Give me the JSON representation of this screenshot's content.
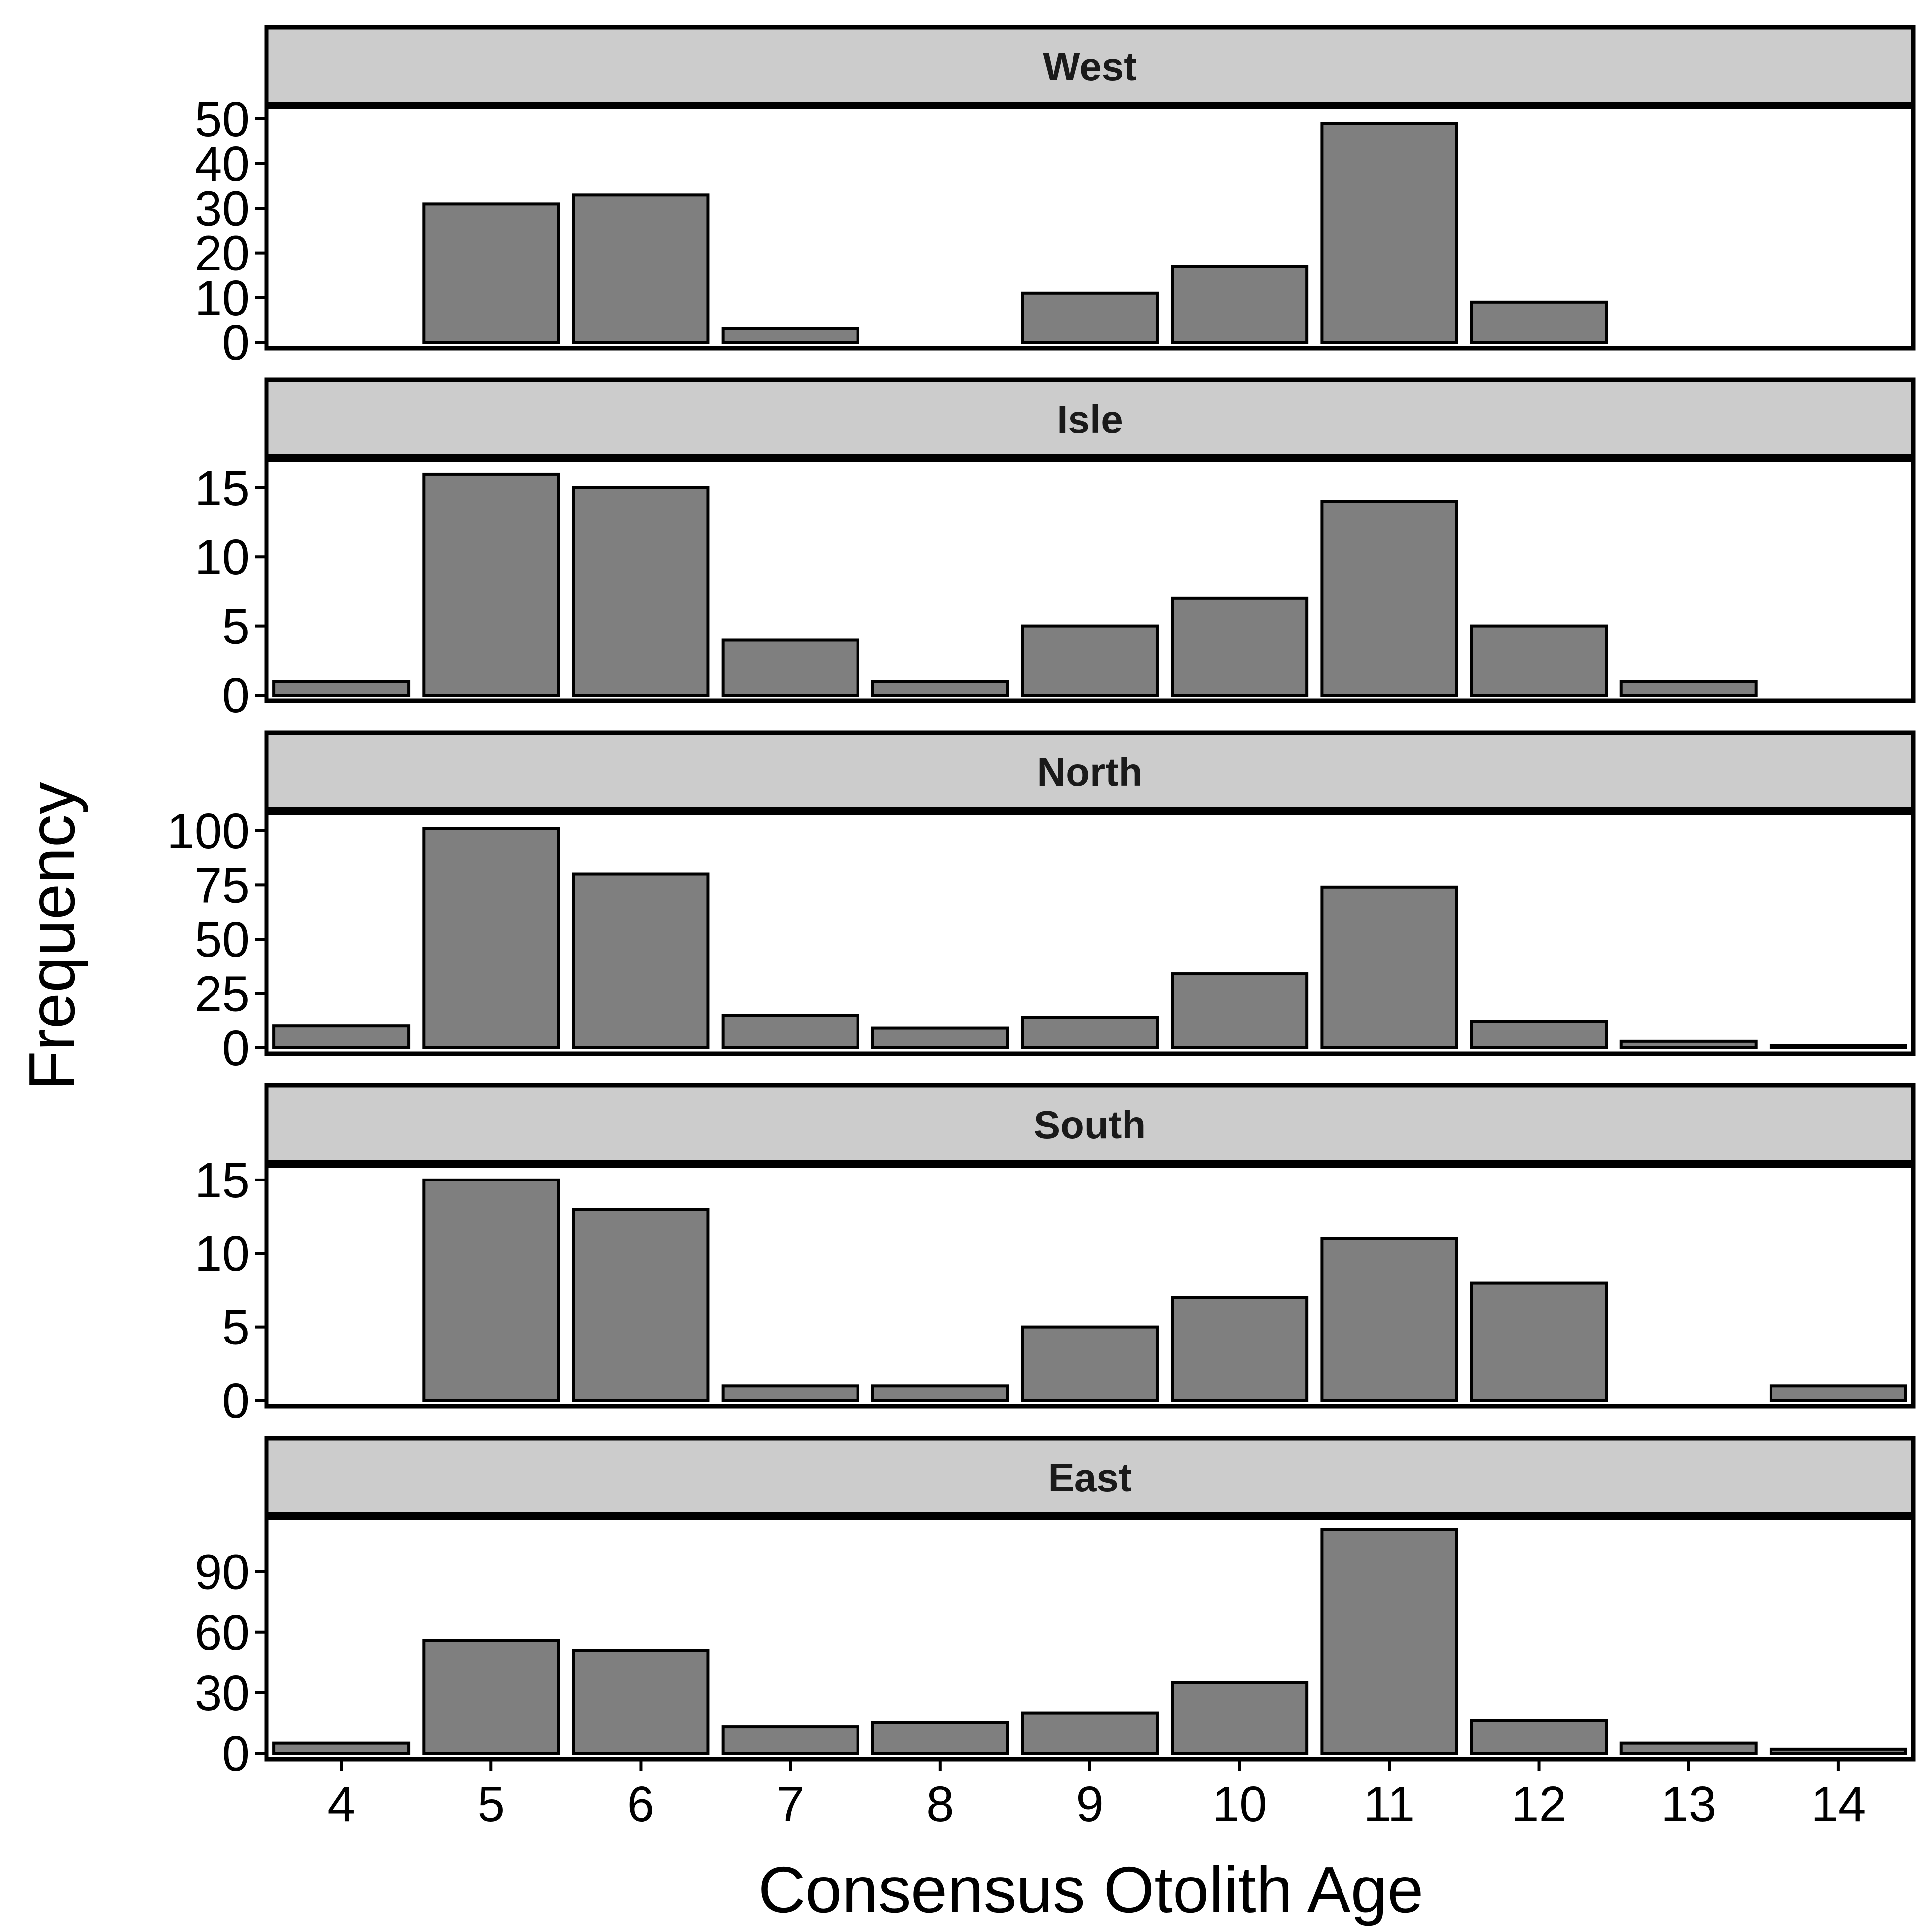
{
  "chart_data": {
    "type": "bar",
    "xlabel": "Consensus Otolith Age",
    "ylabel": "Frequency",
    "categories": [
      "4",
      "5",
      "6",
      "7",
      "8",
      "9",
      "10",
      "11",
      "12",
      "13",
      "14"
    ],
    "colors": {
      "bar_fill": "#7f7f7f",
      "bar_stroke": "#000000",
      "strip_fill": "#cccccc"
    },
    "grid": false,
    "panels": [
      {
        "name": "West",
        "ylim": [
          0,
          51
        ],
        "yticks": [
          0,
          10,
          20,
          30,
          40,
          50
        ],
        "values": [
          0,
          31,
          33,
          3,
          0,
          11,
          17,
          49,
          9,
          0,
          0
        ]
      },
      {
        "name": "Isle",
        "ylim": [
          0,
          16.5
        ],
        "yticks": [
          0,
          5,
          10,
          15
        ],
        "values": [
          1,
          16,
          15,
          4,
          1,
          5,
          7,
          14,
          5,
          1,
          0
        ]
      },
      {
        "name": "North",
        "ylim": [
          0,
          105
        ],
        "yticks": [
          0,
          25,
          50,
          75,
          100
        ],
        "values": [
          10,
          101,
          80,
          15,
          9,
          14,
          34,
          74,
          12,
          3,
          1
        ]
      },
      {
        "name": "South",
        "ylim": [
          0,
          15.5
        ],
        "yticks": [
          0,
          5,
          10,
          15
        ],
        "values": [
          0,
          15,
          13,
          1,
          1,
          5,
          7,
          11,
          8,
          0,
          1
        ]
      },
      {
        "name": "East",
        "ylim": [
          0,
          113
        ],
        "yticks": [
          0,
          30,
          60,
          90
        ],
        "values": [
          5,
          56,
          51,
          13,
          15,
          20,
          35,
          111,
          16,
          5,
          2
        ]
      }
    ]
  }
}
